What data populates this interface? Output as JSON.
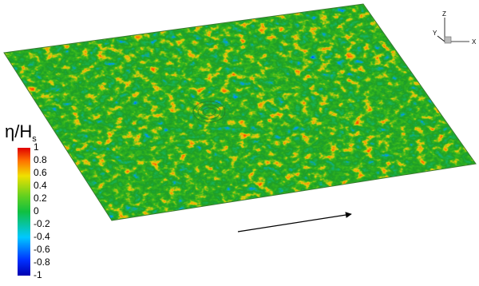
{
  "colorbar": {
    "label": "η/H",
    "label_subscript": "s",
    "ticks": [
      1,
      0.8,
      0.6,
      0.4,
      0.2,
      0,
      -0.2,
      -0.4,
      -0.6,
      -0.8,
      -1
    ]
  },
  "axes_triad": {
    "x": "X",
    "y": "Y",
    "z": "Z"
  }
}
